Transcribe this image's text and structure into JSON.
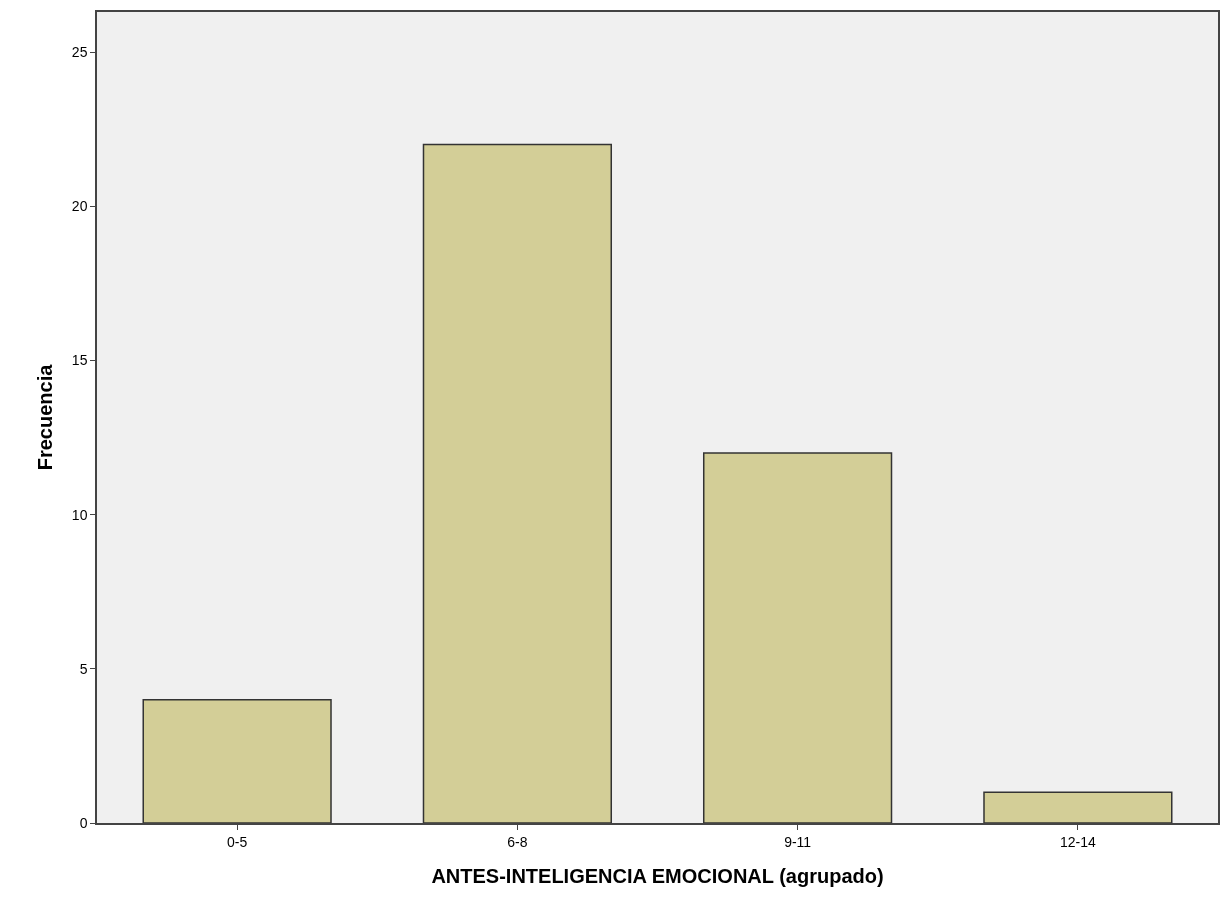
{
  "chart_data": {
    "type": "bar",
    "xlabel": "ANTES-INTELIGENCIA EMOCIONAL (agrupado)",
    "ylabel": "Frecuencia",
    "categories": [
      "0-5",
      "6-8",
      "9-11",
      "12-14"
    ],
    "values": [
      4,
      22,
      12,
      1
    ],
    "color": "#d3ce97",
    "ylim": [
      0,
      26.3
    ],
    "yticks": [
      0,
      5,
      10,
      15,
      20,
      25
    ],
    "grid": false
  }
}
